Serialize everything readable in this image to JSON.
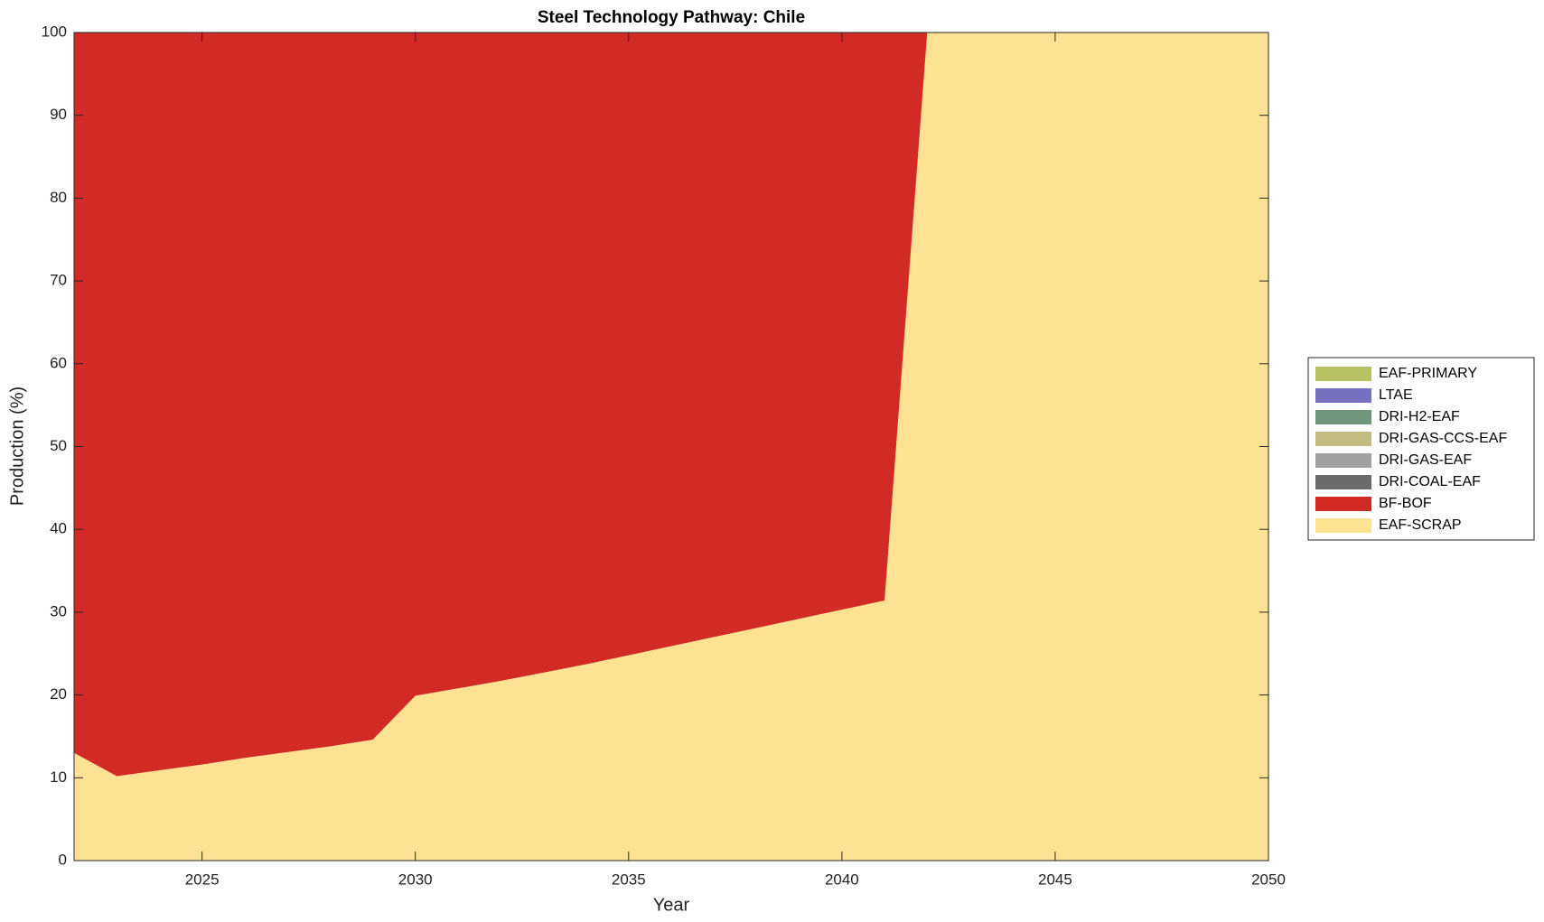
{
  "chart_data": {
    "type": "stacked-area",
    "title": "Steel Technology Pathway: Chile",
    "x_label": "Year",
    "y_label": "Production (%)",
    "x": [
      2022,
      2023,
      2024,
      2025,
      2026,
      2027,
      2028,
      2029,
      2030,
      2031,
      2032,
      2033,
      2034,
      2035,
      2036,
      2037,
      2038,
      2039,
      2040,
      2041,
      2042,
      2043,
      2044,
      2045,
      2046,
      2047,
      2048,
      2049,
      2050
    ],
    "series": [
      {
        "name": "EAF-PRIMARY",
        "color": "#b7c266",
        "values": [
          0,
          0,
          0,
          0,
          0,
          0,
          0,
          0,
          0,
          0,
          0,
          0,
          0,
          0,
          0,
          0,
          0,
          0,
          0,
          0,
          0,
          0,
          0,
          0,
          0,
          0,
          0,
          0,
          0
        ]
      },
      {
        "name": "LTAE",
        "color": "#7570c0",
        "values": [
          0,
          0,
          0,
          0,
          0,
          0,
          0,
          0,
          0,
          0,
          0,
          0,
          0,
          0,
          0,
          0,
          0,
          0,
          0,
          0,
          0,
          0,
          0,
          0,
          0,
          0,
          0,
          0,
          0
        ]
      },
      {
        "name": "DRI-H2-EAF",
        "color": "#6f957a",
        "values": [
          0,
          0,
          0,
          0,
          0,
          0,
          0,
          0,
          0,
          0,
          0,
          0,
          0,
          0,
          0,
          0,
          0,
          0,
          0,
          0,
          0,
          0,
          0,
          0,
          0,
          0,
          0,
          0,
          0
        ]
      },
      {
        "name": "DRI-GAS-CCS-EAF",
        "color": "#c2bb82",
        "values": [
          0,
          0,
          0,
          0,
          0,
          0,
          0,
          0,
          0,
          0,
          0,
          0,
          0,
          0,
          0,
          0,
          0,
          0,
          0,
          0,
          0,
          0,
          0,
          0,
          0,
          0,
          0,
          0,
          0
        ]
      },
      {
        "name": "DRI-GAS-EAF",
        "color": "#a0a0a0",
        "values": [
          0,
          0,
          0,
          0,
          0,
          0,
          0,
          0,
          0,
          0,
          0,
          0,
          0,
          0,
          0,
          0,
          0,
          0,
          0,
          0,
          0,
          0,
          0,
          0,
          0,
          0,
          0,
          0,
          0
        ]
      },
      {
        "name": "DRI-COAL-EAF",
        "color": "#6b6b6b",
        "values": [
          0,
          0,
          0,
          0,
          0,
          0,
          0,
          0,
          0,
          0,
          0,
          0,
          0,
          0,
          0,
          0,
          0,
          0,
          0,
          0,
          0,
          0,
          0,
          0,
          0,
          0,
          0,
          0,
          0
        ]
      },
      {
        "name": "BF-BOF",
        "color": "#d22a25",
        "values": [
          87,
          89.8,
          89.1,
          88.4,
          87.6,
          86.9,
          86.2,
          85.4,
          80.1,
          79.2,
          78.3,
          77.3,
          76.3,
          75.2,
          74.1,
          73,
          71.9,
          70.8,
          69.7,
          68.6,
          0,
          0,
          0,
          0,
          0,
          0,
          0,
          0,
          0
        ]
      },
      {
        "name": "EAF-SCRAP",
        "color": "#fee293",
        "values": [
          13,
          10.2,
          10.9,
          11.6,
          12.4,
          13.1,
          13.8,
          14.6,
          19.9,
          20.8,
          21.7,
          22.7,
          23.7,
          24.8,
          25.9,
          27,
          28.1,
          29.2,
          30.3,
          31.4,
          100,
          100,
          100,
          100,
          100,
          100,
          100,
          100,
          100
        ]
      }
    ],
    "xlim": [
      2022,
      2050
    ],
    "xticks": [
      2025,
      2030,
      2035,
      2040,
      2045,
      2050
    ],
    "ylim": [
      0,
      100
    ],
    "yticks": [
      0,
      10,
      20,
      30,
      40,
      50,
      60,
      70,
      80,
      90,
      100
    ],
    "stacking": "last series at bottom",
    "legend": "right"
  }
}
